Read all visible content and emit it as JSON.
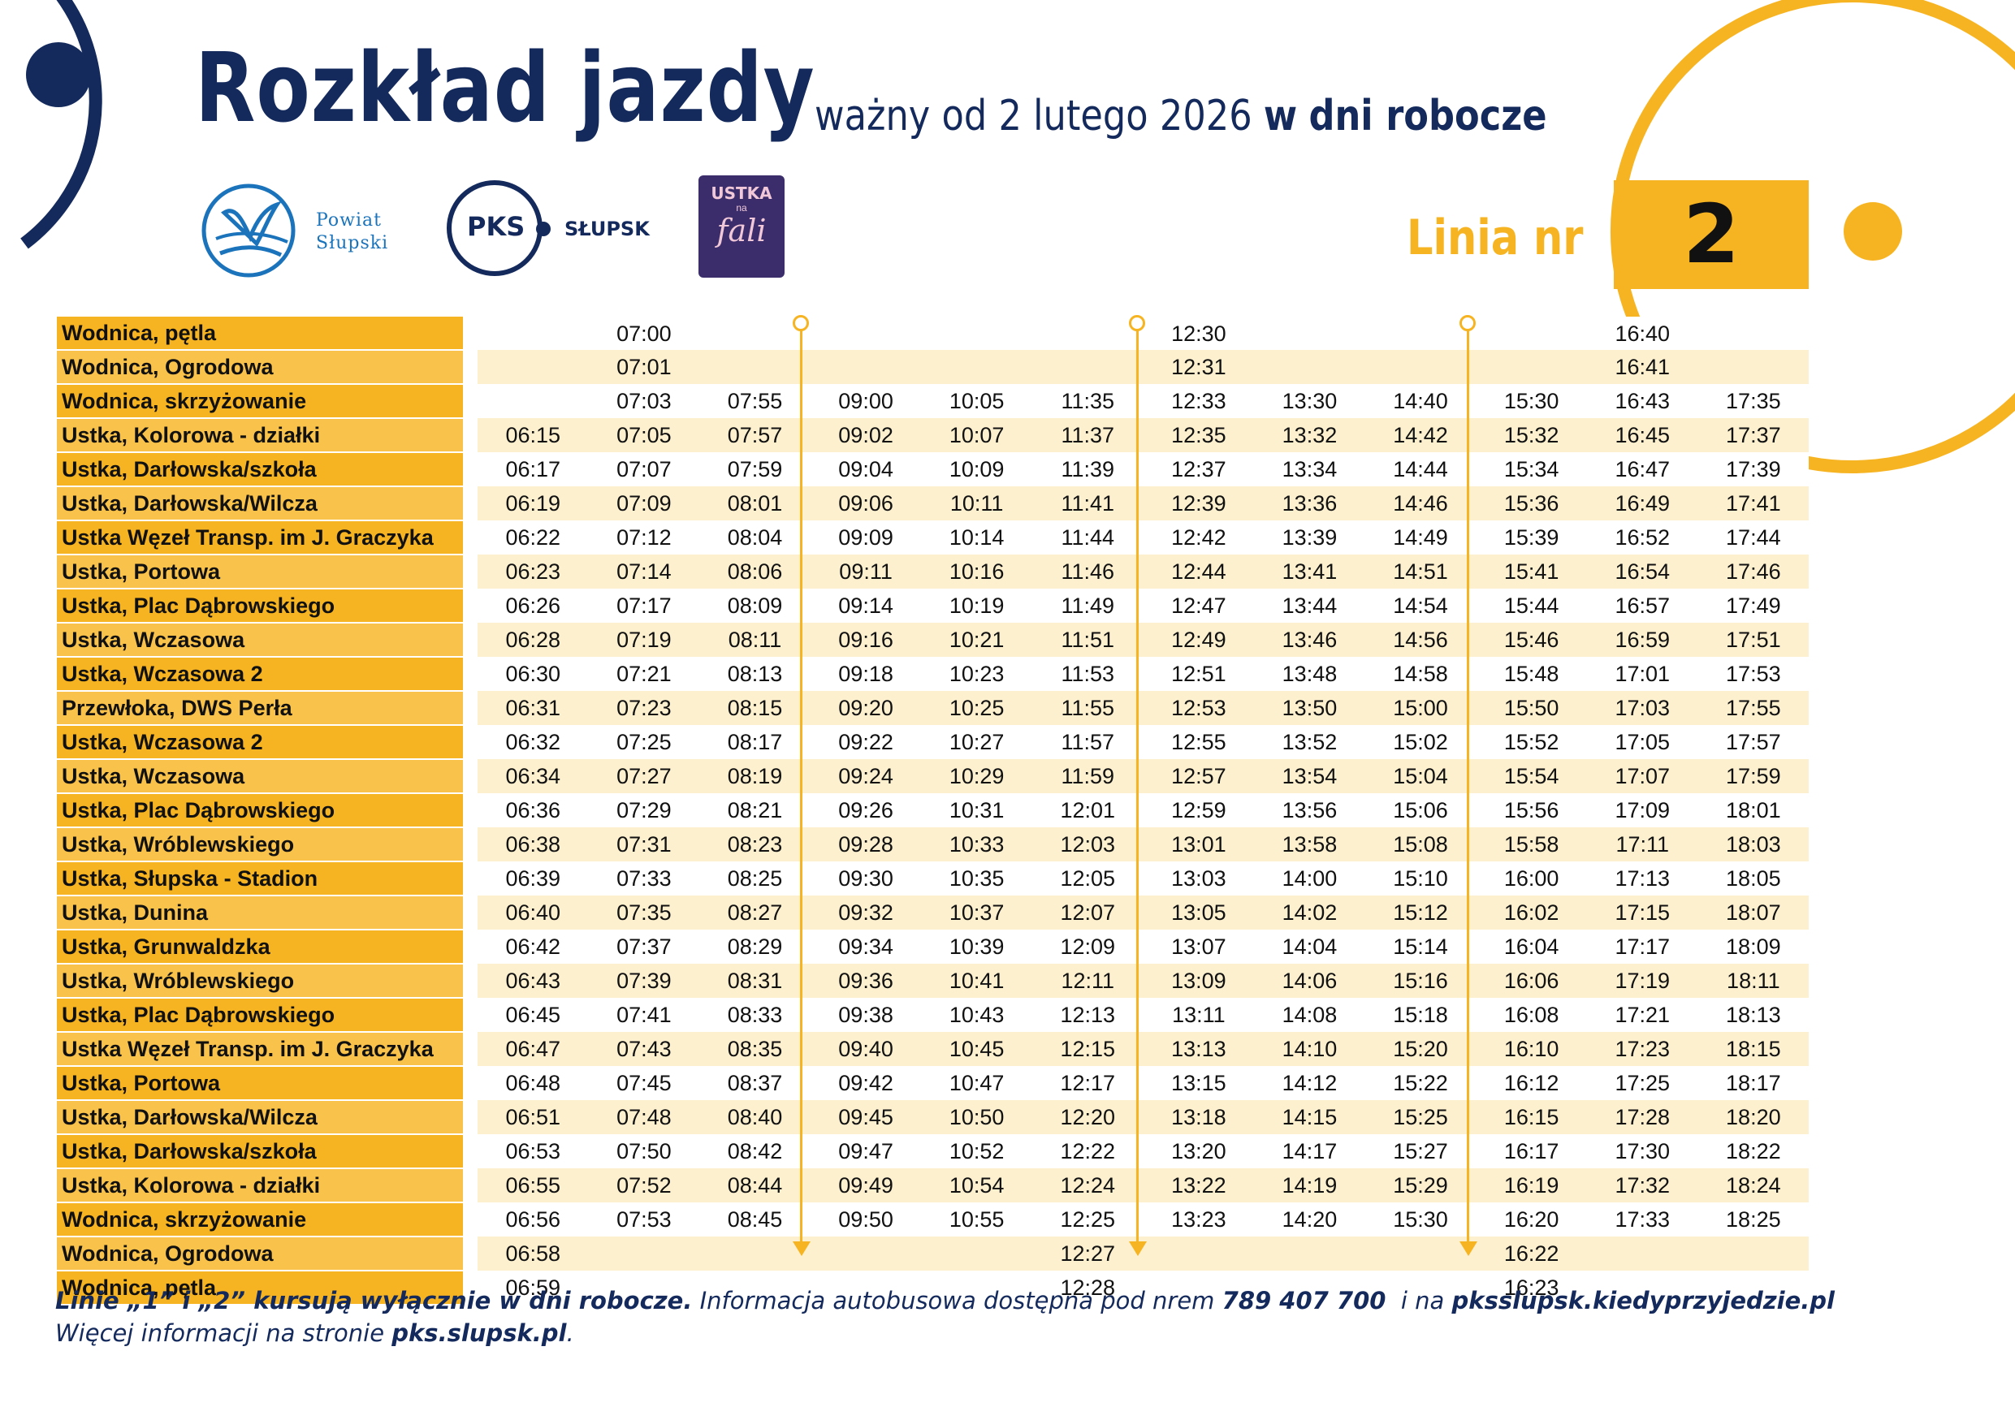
{
  "header": {
    "title": "Rozkład jazdy",
    "valid_from": "ważny od 2 lutego 2026",
    "day_prefix": "w",
    "day_type": "dni robocze"
  },
  "logos": {
    "powiat_line1": "Powiat",
    "powiat_line2": "Słupski",
    "pks_text": "PKS",
    "pks_city": "SŁUPSK",
    "ustka_top": "USTKA",
    "ustka_small": "na",
    "ustka_bottom": "fali"
  },
  "line": {
    "label": "Linia nr",
    "number": "2"
  },
  "colors": {
    "accent": "#f7b422",
    "navy": "#142a5c",
    "stripe": "#fdf0cf",
    "ustka_purple": "#3b2d6b"
  },
  "timetable": {
    "rows": [
      {
        "stop": "Wodnica, pętla",
        "times": [
          "",
          "07:00",
          "",
          "",
          "",
          "",
          "12:30",
          "",
          "",
          "",
          "16:40",
          ""
        ]
      },
      {
        "stop": "Wodnica, Ogrodowa",
        "times": [
          "",
          "07:01",
          "",
          "",
          "",
          "",
          "12:31",
          "",
          "",
          "",
          "16:41",
          ""
        ]
      },
      {
        "stop": "Wodnica, skrzyżowanie",
        "times": [
          "",
          "07:03",
          "07:55",
          "09:00",
          "10:05",
          "11:35",
          "12:33",
          "13:30",
          "14:40",
          "15:30",
          "16:43",
          "17:35"
        ]
      },
      {
        "stop": "Ustka, Kolorowa - działki",
        "times": [
          "06:15",
          "07:05",
          "07:57",
          "09:02",
          "10:07",
          "11:37",
          "12:35",
          "13:32",
          "14:42",
          "15:32",
          "16:45",
          "17:37"
        ]
      },
      {
        "stop": "Ustka, Darłowska/szkoła",
        "times": [
          "06:17",
          "07:07",
          "07:59",
          "09:04",
          "10:09",
          "11:39",
          "12:37",
          "13:34",
          "14:44",
          "15:34",
          "16:47",
          "17:39"
        ]
      },
      {
        "stop": "Ustka, Darłowska/Wilcza",
        "times": [
          "06:19",
          "07:09",
          "08:01",
          "09:06",
          "10:11",
          "11:41",
          "12:39",
          "13:36",
          "14:46",
          "15:36",
          "16:49",
          "17:41"
        ]
      },
      {
        "stop": "Ustka Węzeł Transp. im J. Graczyka",
        "times": [
          "06:22",
          "07:12",
          "08:04",
          "09:09",
          "10:14",
          "11:44",
          "12:42",
          "13:39",
          "14:49",
          "15:39",
          "16:52",
          "17:44"
        ]
      },
      {
        "stop": "Ustka, Portowa",
        "times": [
          "06:23",
          "07:14",
          "08:06",
          "09:11",
          "10:16",
          "11:46",
          "12:44",
          "13:41",
          "14:51",
          "15:41",
          "16:54",
          "17:46"
        ]
      },
      {
        "stop": "Ustka, Plac Dąbrowskiego",
        "times": [
          "06:26",
          "07:17",
          "08:09",
          "09:14",
          "10:19",
          "11:49",
          "12:47",
          "13:44",
          "14:54",
          "15:44",
          "16:57",
          "17:49"
        ]
      },
      {
        "stop": "Ustka, Wczasowa",
        "times": [
          "06:28",
          "07:19",
          "08:11",
          "09:16",
          "10:21",
          "11:51",
          "12:49",
          "13:46",
          "14:56",
          "15:46",
          "16:59",
          "17:51"
        ]
      },
      {
        "stop": "Ustka, Wczasowa 2",
        "times": [
          "06:30",
          "07:21",
          "08:13",
          "09:18",
          "10:23",
          "11:53",
          "12:51",
          "13:48",
          "14:58",
          "15:48",
          "17:01",
          "17:53"
        ]
      },
      {
        "stop": "Przewłoka, DWS Perła",
        "times": [
          "06:31",
          "07:23",
          "08:15",
          "09:20",
          "10:25",
          "11:55",
          "12:53",
          "13:50",
          "15:00",
          "15:50",
          "17:03",
          "17:55"
        ]
      },
      {
        "stop": "Ustka, Wczasowa 2",
        "times": [
          "06:32",
          "07:25",
          "08:17",
          "09:22",
          "10:27",
          "11:57",
          "12:55",
          "13:52",
          "15:02",
          "15:52",
          "17:05",
          "17:57"
        ]
      },
      {
        "stop": "Ustka, Wczasowa",
        "times": [
          "06:34",
          "07:27",
          "08:19",
          "09:24",
          "10:29",
          "11:59",
          "12:57",
          "13:54",
          "15:04",
          "15:54",
          "17:07",
          "17:59"
        ]
      },
      {
        "stop": "Ustka, Plac Dąbrowskiego",
        "times": [
          "06:36",
          "07:29",
          "08:21",
          "09:26",
          "10:31",
          "12:01",
          "12:59",
          "13:56",
          "15:06",
          "15:56",
          "17:09",
          "18:01"
        ]
      },
      {
        "stop": "Ustka, Wróblewskiego",
        "times": [
          "06:38",
          "07:31",
          "08:23",
          "09:28",
          "10:33",
          "12:03",
          "13:01",
          "13:58",
          "15:08",
          "15:58",
          "17:11",
          "18:03"
        ]
      },
      {
        "stop": "Ustka, Słupska - Stadion",
        "times": [
          "06:39",
          "07:33",
          "08:25",
          "09:30",
          "10:35",
          "12:05",
          "13:03",
          "14:00",
          "15:10",
          "16:00",
          "17:13",
          "18:05"
        ]
      },
      {
        "stop": "Ustka, Dunina",
        "times": [
          "06:40",
          "07:35",
          "08:27",
          "09:32",
          "10:37",
          "12:07",
          "13:05",
          "14:02",
          "15:12",
          "16:02",
          "17:15",
          "18:07"
        ]
      },
      {
        "stop": "Ustka, Grunwaldzka",
        "times": [
          "06:42",
          "07:37",
          "08:29",
          "09:34",
          "10:39",
          "12:09",
          "13:07",
          "14:04",
          "15:14",
          "16:04",
          "17:17",
          "18:09"
        ]
      },
      {
        "stop": "Ustka, Wróblewskiego",
        "times": [
          "06:43",
          "07:39",
          "08:31",
          "09:36",
          "10:41",
          "12:11",
          "13:09",
          "14:06",
          "15:16",
          "16:06",
          "17:19",
          "18:11"
        ]
      },
      {
        "stop": "Ustka, Plac Dąbrowskiego",
        "times": [
          "06:45",
          "07:41",
          "08:33",
          "09:38",
          "10:43",
          "12:13",
          "13:11",
          "14:08",
          "15:18",
          "16:08",
          "17:21",
          "18:13"
        ]
      },
      {
        "stop": "Ustka Węzeł Transp. im J. Graczyka",
        "times": [
          "06:47",
          "07:43",
          "08:35",
          "09:40",
          "10:45",
          "12:15",
          "13:13",
          "14:10",
          "15:20",
          "16:10",
          "17:23",
          "18:15"
        ]
      },
      {
        "stop": "Ustka, Portowa",
        "times": [
          "06:48",
          "07:45",
          "08:37",
          "09:42",
          "10:47",
          "12:17",
          "13:15",
          "14:12",
          "15:22",
          "16:12",
          "17:25",
          "18:17"
        ]
      },
      {
        "stop": "Ustka, Darłowska/Wilcza",
        "times": [
          "06:51",
          "07:48",
          "08:40",
          "09:45",
          "10:50",
          "12:20",
          "13:18",
          "14:15",
          "15:25",
          "16:15",
          "17:28",
          "18:20"
        ]
      },
      {
        "stop": "Ustka, Darłowska/szkoła",
        "times": [
          "06:53",
          "07:50",
          "08:42",
          "09:47",
          "10:52",
          "12:22",
          "13:20",
          "14:17",
          "15:27",
          "16:17",
          "17:30",
          "18:22"
        ]
      },
      {
        "stop": "Ustka, Kolorowa - działki",
        "times": [
          "06:55",
          "07:52",
          "08:44",
          "09:49",
          "10:54",
          "12:24",
          "13:22",
          "14:19",
          "15:29",
          "16:19",
          "17:32",
          "18:24"
        ]
      },
      {
        "stop": "Wodnica, skrzyżowanie",
        "times": [
          "06:56",
          "07:53",
          "08:45",
          "09:50",
          "10:55",
          "12:25",
          "13:23",
          "14:20",
          "15:30",
          "16:20",
          "17:33",
          "18:25"
        ]
      },
      {
        "stop": "Wodnica, Ogrodowa",
        "times": [
          "06:58",
          "",
          "",
          "",
          "",
          "12:27",
          "",
          "",
          "",
          "16:22",
          "",
          ""
        ]
      },
      {
        "stop": "Wodnica, pętla",
        "times": [
          "06:59",
          "",
          "",
          "",
          "",
          "12:28",
          "",
          "",
          "",
          "16:23",
          "",
          ""
        ]
      }
    ]
  },
  "footer": {
    "bold1": "Linie „1” i „2” kursują wyłącznie w dni robocze.",
    "text1": " Informacja autobusowa dostępna pod nrem ",
    "phone": "789 407 700",
    "text2": "  i na ",
    "site1": "pksslupsk.kiedyprzyjedzie.pl",
    "text3": "Więcej informacji na stronie ",
    "site2": "pks.slupsk.pl",
    "text4": "."
  }
}
